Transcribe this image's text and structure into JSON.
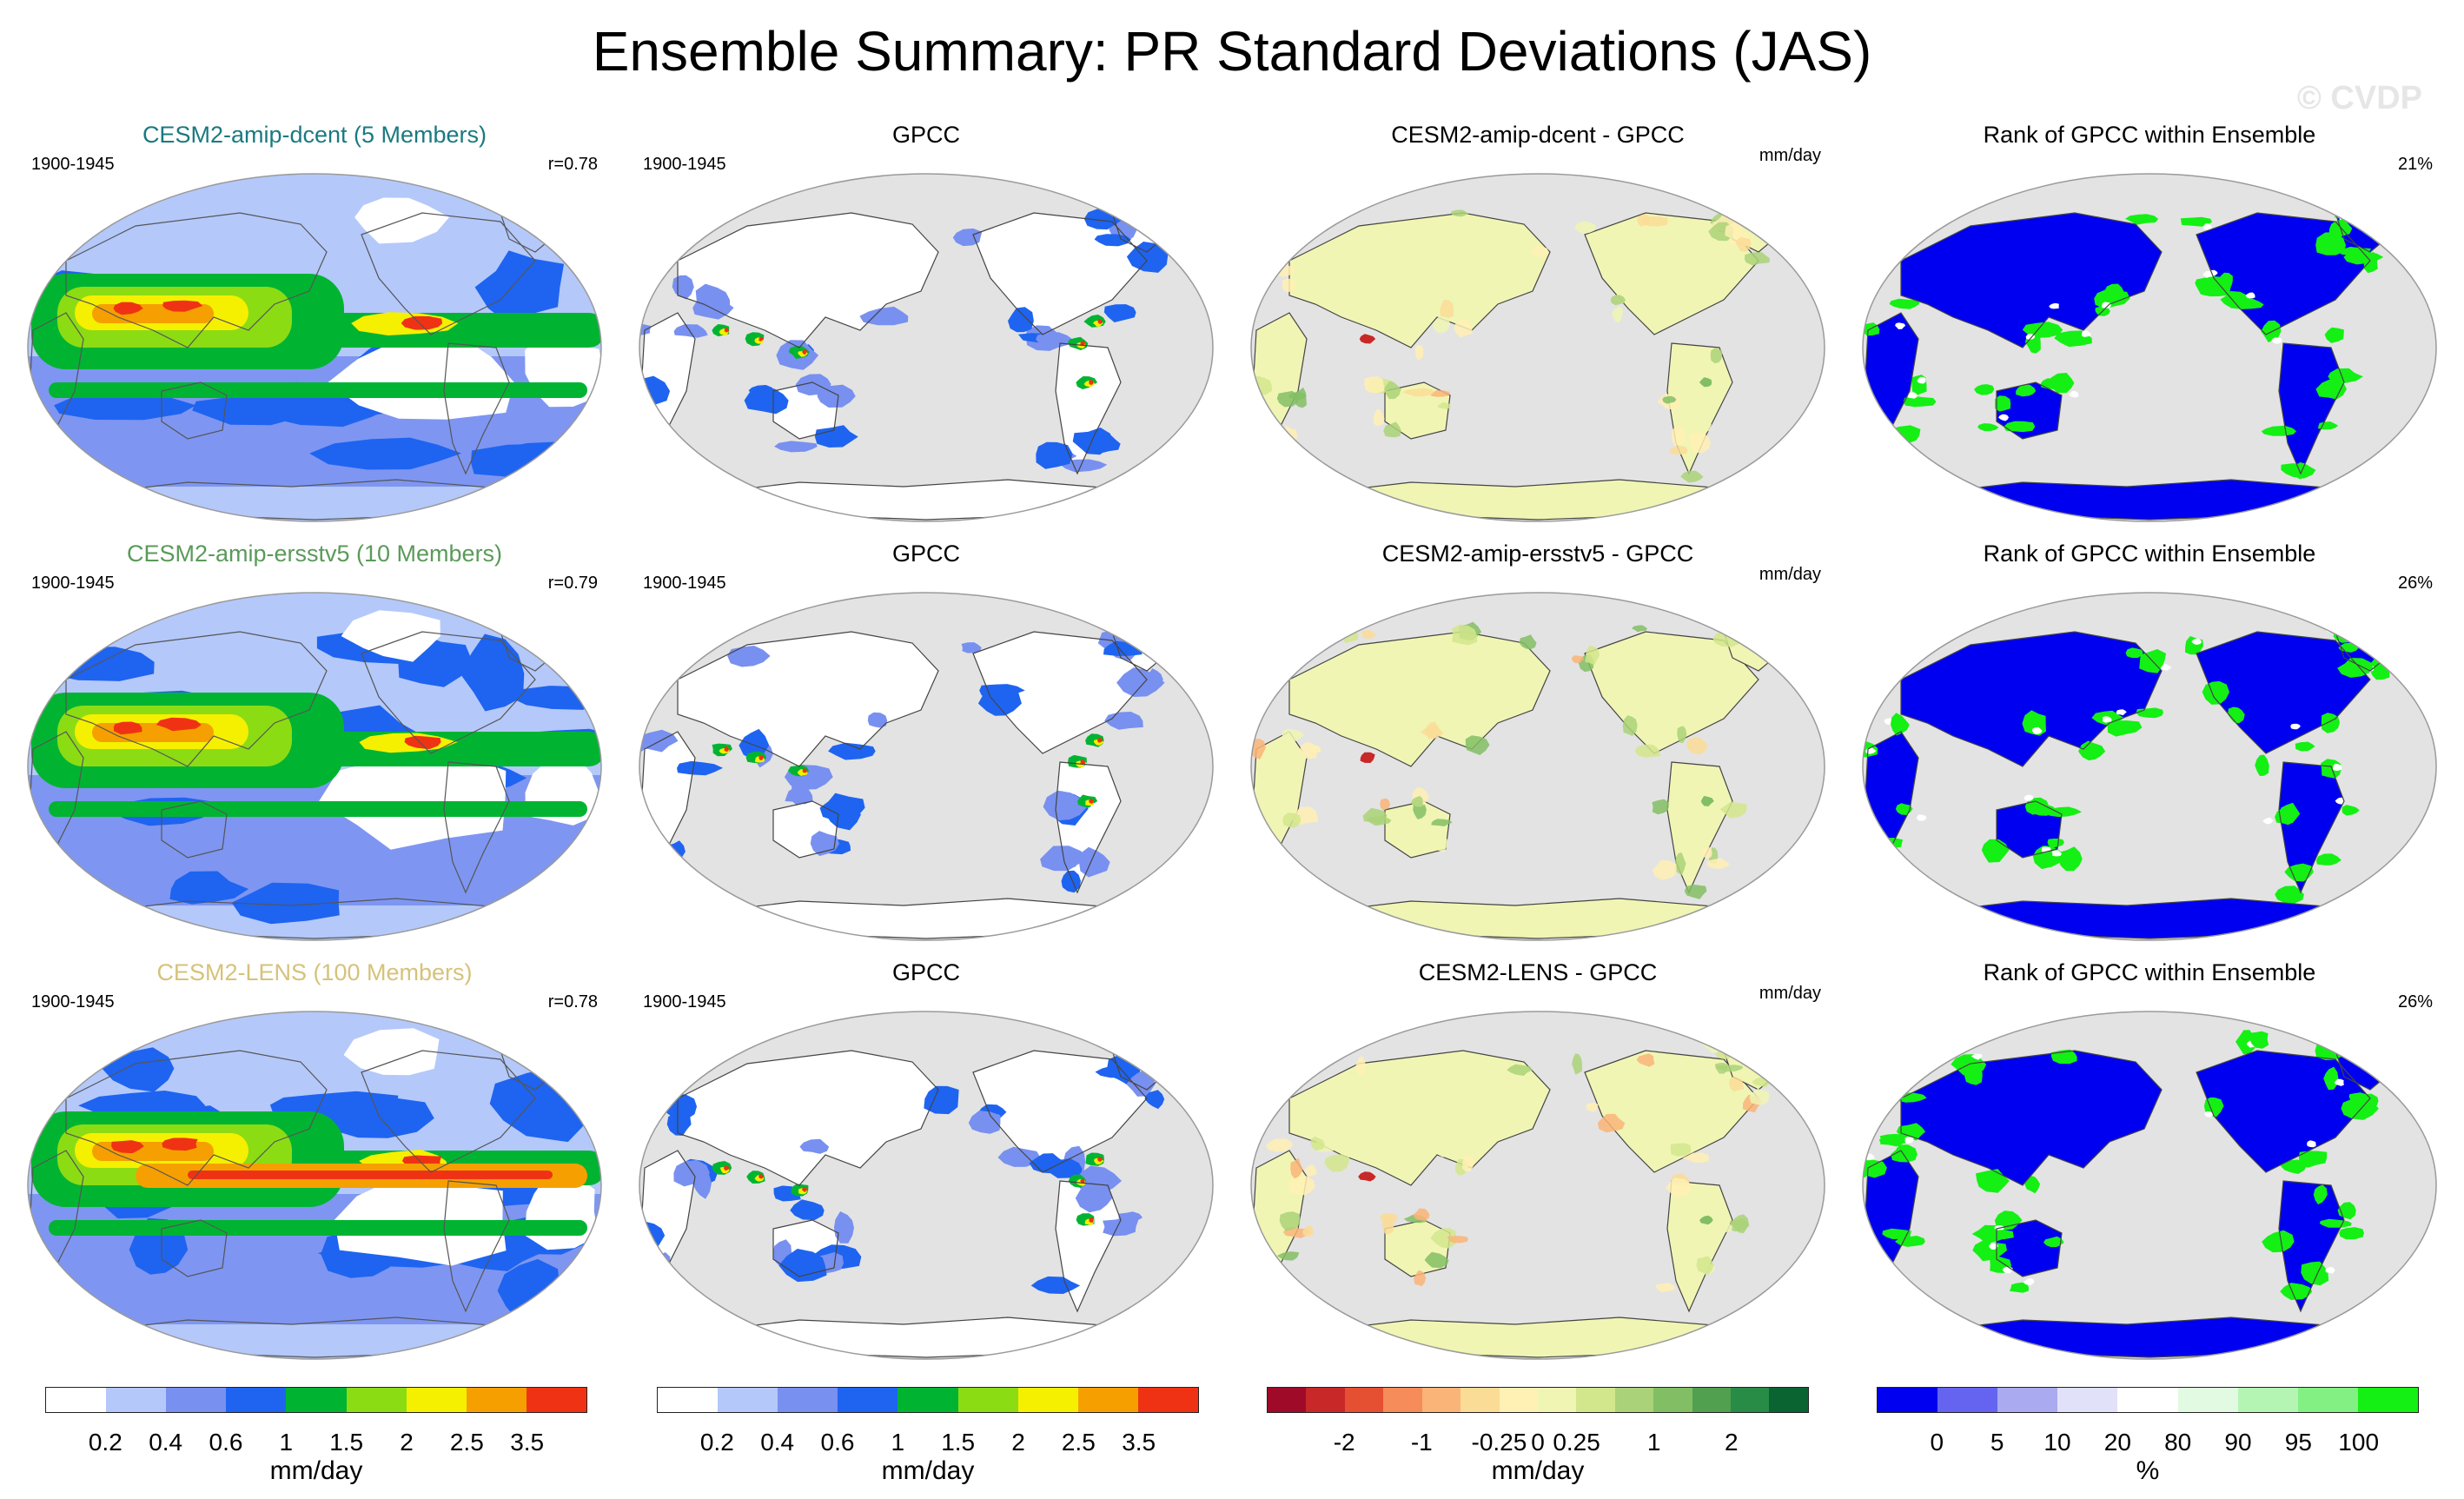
{
  "title": "Ensemble Summary: PR Standard Deviations (JAS)",
  "watermark": "© CVDP",
  "rows": [
    {
      "model_label": "CESM2-amip-dcent (5 Members)",
      "model_color": "#1a7a80",
      "period": "1900-1945",
      "r_label": "r=0.78",
      "gpcc_title": "GPCC",
      "gpcc_period": "1900-1945",
      "diff_title": "CESM2-amip-dcent - GPCC",
      "diff_units": "mm/day",
      "rank_title": "Rank of GPCC within Ensemble",
      "rank_pct": "21%"
    },
    {
      "model_label": "CESM2-amip-ersstv5 (10 Members)",
      "model_color": "#5a9a5a",
      "period": "1900-1945",
      "r_label": "r=0.79",
      "gpcc_title": "GPCC",
      "gpcc_period": "1900-1945",
      "diff_title": "CESM2-amip-ersstv5 - GPCC",
      "diff_units": "mm/day",
      "rank_title": "Rank of GPCC within Ensemble",
      "rank_pct": "26%"
    },
    {
      "model_label": "CESM2-LENS (100 Members)",
      "model_color": "#d6c27a",
      "period": "1900-1945",
      "r_label": "r=0.78",
      "gpcc_title": "GPCC",
      "gpcc_period": "1900-1945",
      "diff_title": "CESM2-LENS - GPCC",
      "diff_units": "mm/day",
      "rank_title": "Rank of GPCC within Ensemble",
      "rank_pct": "26%"
    }
  ],
  "legends": {
    "pr": {
      "colors": [
        "#ffffff",
        "#b4c8fa",
        "#7890f0",
        "#1e64f0",
        "#00b432",
        "#8cdc14",
        "#f5f000",
        "#f5a000",
        "#f03214"
      ],
      "ticks": [
        "0.2",
        "0.4",
        "0.6",
        "1",
        "1.5",
        "2",
        "2.5",
        "3.5"
      ],
      "units": "mm/day"
    },
    "diff": {
      "colors": [
        "#9e0a28",
        "#c82828",
        "#e65032",
        "#f58c5a",
        "#fab478",
        "#fadc96",
        "#fff0b4",
        "#f0f5b4",
        "#d2e68c",
        "#aad278",
        "#82be64",
        "#50a050",
        "#288c46",
        "#0a6432"
      ],
      "ticks": [
        "-2",
        "-1",
        "-0.25",
        "0",
        "0.25",
        "1",
        "2"
      ],
      "units": "mm/day"
    },
    "rank": {
      "colors": [
        "#0000f0",
        "#6464f0",
        "#aaaaf0",
        "#e1e1fa",
        "#ffffff",
        "#e1fae1",
        "#b4f5b4",
        "#82f082",
        "#14f014"
      ],
      "ticks": [
        "0",
        "5",
        "10",
        "20",
        "80",
        "90",
        "95",
        "100"
      ],
      "units": "%"
    }
  },
  "chart_data": [
    {
      "type": "heatmap",
      "title": "CESM2-amip-dcent (5 Members)",
      "units": "mm/day",
      "period": "1900-1945",
      "pattern_correlation": 0.78
    },
    {
      "type": "heatmap",
      "title": "GPCC",
      "units": "mm/day",
      "period": "1900-1945"
    },
    {
      "type": "heatmap",
      "title": "CESM2-amip-dcent - GPCC",
      "units": "mm/day"
    },
    {
      "type": "heatmap",
      "title": "Rank of GPCC within Ensemble",
      "units": "%",
      "area_percent": 21
    },
    {
      "type": "heatmap",
      "title": "CESM2-amip-ersstv5 (10 Members)",
      "units": "mm/day",
      "period": "1900-1945",
      "pattern_correlation": 0.79
    },
    {
      "type": "heatmap",
      "title": "GPCC",
      "units": "mm/day",
      "period": "1900-1945"
    },
    {
      "type": "heatmap",
      "title": "CESM2-amip-ersstv5 - GPCC",
      "units": "mm/day"
    },
    {
      "type": "heatmap",
      "title": "Rank of GPCC within Ensemble",
      "units": "%",
      "area_percent": 26
    },
    {
      "type": "heatmap",
      "title": "CESM2-LENS (100 Members)",
      "units": "mm/day",
      "period": "1900-1945",
      "pattern_correlation": 0.78
    },
    {
      "type": "heatmap",
      "title": "GPCC",
      "units": "mm/day",
      "period": "1900-1945"
    },
    {
      "type": "heatmap",
      "title": "CESM2-LENS - GPCC",
      "units": "mm/day"
    },
    {
      "type": "heatmap",
      "title": "Rank of GPCC within Ensemble",
      "units": "%",
      "area_percent": 26
    }
  ]
}
